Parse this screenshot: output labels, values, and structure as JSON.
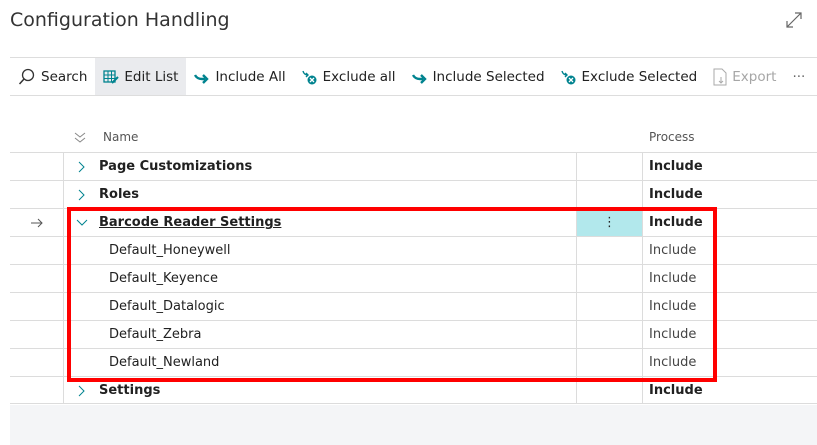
{
  "page": {
    "title": "Configuration Handling"
  },
  "toolbar": {
    "search": "Search",
    "edit_list": "Edit List",
    "include_all": "Include All",
    "exclude_all": "Exclude all",
    "include_selected": "Include Selected",
    "exclude_selected": "Exclude Selected",
    "export": "Export",
    "more": "···"
  },
  "columns": {
    "name": "Name",
    "process": "Process"
  },
  "rows": [
    {
      "name": "Page Customizations",
      "process": "Include"
    },
    {
      "name": "Roles",
      "process": "Include"
    },
    {
      "name": "Barcode Reader Settings",
      "process": "Include"
    },
    {
      "name": "Default_Honeywell",
      "process": "Include"
    },
    {
      "name": "Default_Keyence",
      "process": "Include"
    },
    {
      "name": "Default_Datalogic",
      "process": "Include"
    },
    {
      "name": "Default_Zebra",
      "process": "Include"
    },
    {
      "name": "Default_Newland",
      "process": "Include"
    },
    {
      "name": "Settings",
      "process": "Include"
    }
  ],
  "row_menu": "⋮",
  "colors": {
    "accent": "#00838f",
    "highlight": "#ff0000",
    "selected_cell": "#b2e8ec"
  }
}
